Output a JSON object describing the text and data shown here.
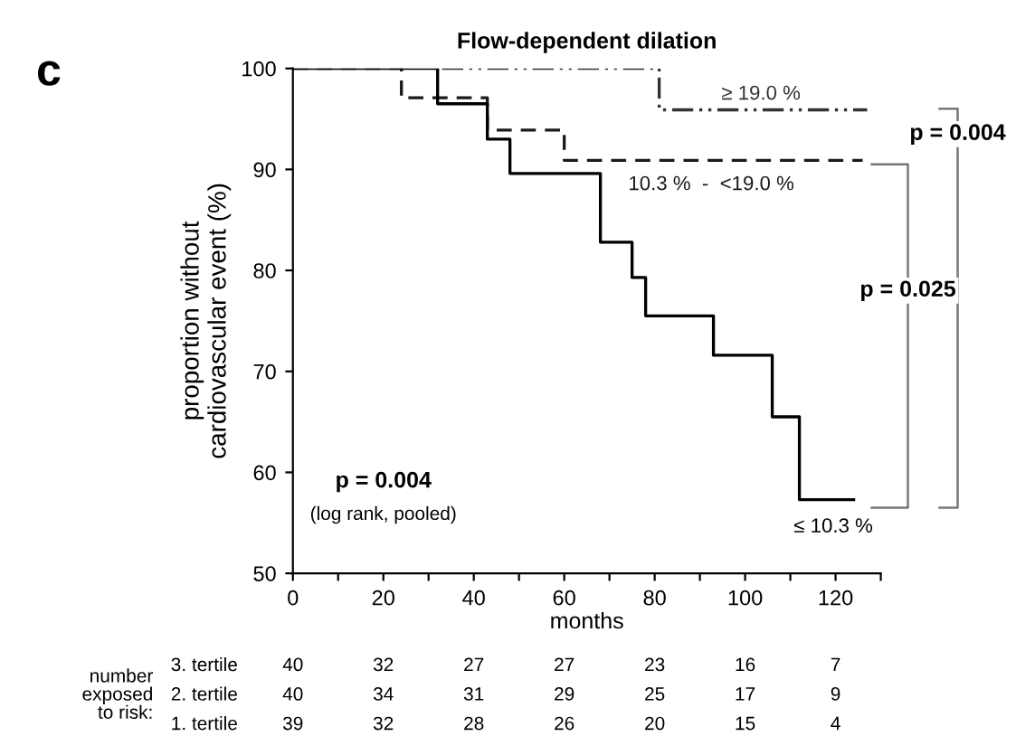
{
  "chart_data": {
    "type": "step",
    "title": "Flow-dependent dilation",
    "xlabel": "months",
    "ylabel": "proportion without\ncardiovascular event (%)",
    "xlim": [
      0,
      130
    ],
    "ylim": [
      50,
      100
    ],
    "xticks": [
      0,
      {
        "value": 10,
        "label": null
      },
      20,
      {
        "value": 30,
        "label": null
      },
      40,
      {
        "value": 50,
        "label": null
      },
      60,
      {
        "value": 70,
        "label": null
      },
      80,
      {
        "value": 90,
        "label": null
      },
      100,
      {
        "value": 110,
        "label": null
      },
      120,
      {
        "value": 130,
        "label": null
      }
    ],
    "yticks": [
      50,
      60,
      70,
      80,
      90,
      100
    ],
    "grid": false,
    "legend": false,
    "series": [
      {
        "name": "≥ 19.0 %",
        "color": "#333333",
        "line_style": "dotted",
        "x": [
          33,
          81,
          127
        ],
        "values": [
          100,
          95.9,
          95.9
        ]
      },
      {
        "name": "10.3 %  -  <19.0 %",
        "color": "#1a1a1a",
        "line_style": "dashed",
        "x": [
          0,
          24,
          43,
          60,
          126
        ],
        "values": [
          100,
          97.1,
          93.9,
          90.9,
          90.9
        ]
      },
      {
        "name": "≤ 10.3 %",
        "color": "#000000",
        "line_style": "solid",
        "x": [
          0,
          32,
          43,
          48,
          68,
          75,
          78,
          93,
          106,
          112,
          124
        ],
        "values": [
          100,
          96.5,
          93,
          89.6,
          82.8,
          79.3,
          75.5,
          71.6,
          65.5,
          57.3,
          57.3
        ]
      }
    ],
    "annotations": [
      "c",
      "p = 0.004",
      "(log rank, pooled)",
      "p = 0.025",
      "p = 0.004",
      "number\nexposed\nto risk:",
      "3. tertile",
      "2. tertile",
      "1. tertile",
      "40 32 27 27 23 16 7",
      "40 34 31 29 25 17 9",
      "39 32 28 26 20 15 4"
    ]
  }
}
